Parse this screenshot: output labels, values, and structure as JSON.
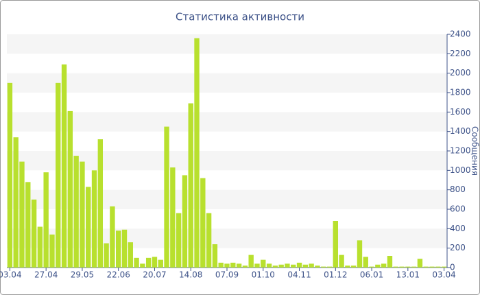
{
  "chart_data": {
    "type": "bar",
    "title": "Статистика активности",
    "y_label": "Сообщения",
    "categories": [
      "03.04",
      null,
      null,
      null,
      null,
      null,
      "27.04",
      null,
      null,
      null,
      null,
      null,
      "29.05",
      null,
      null,
      null,
      null,
      null,
      "22.06",
      null,
      null,
      null,
      null,
      null,
      "20.07",
      null,
      null,
      null,
      null,
      null,
      "14.08",
      null,
      null,
      null,
      null,
      null,
      "07.09",
      null,
      null,
      null,
      null,
      null,
      "01.10",
      null,
      null,
      null,
      null,
      null,
      "04.11",
      null,
      null,
      null,
      null,
      null,
      "01.12",
      null,
      null,
      null,
      null,
      null,
      "06.01",
      null,
      null,
      null,
      null,
      null,
      "13.01",
      null,
      null,
      null,
      null,
      null,
      "03.04"
    ],
    "values": [
      1900,
      1340,
      1090,
      880,
      700,
      420,
      980,
      340,
      1900,
      2090,
      1610,
      1150,
      1090,
      830,
      1000,
      1320,
      250,
      630,
      380,
      390,
      260,
      100,
      40,
      100,
      110,
      80,
      1450,
      1030,
      560,
      950,
      1690,
      2360,
      920,
      560,
      240,
      50,
      40,
      50,
      40,
      20,
      130,
      40,
      80,
      40,
      20,
      30,
      40,
      30,
      50,
      30,
      40,
      20,
      10,
      10,
      480,
      130,
      20,
      20,
      280,
      110,
      10,
      30,
      40,
      120,
      10,
      10,
      10,
      10,
      90,
      10,
      10,
      10,
      10
    ],
    "color": "#b8e02e",
    "ylim": [
      0,
      2400
    ],
    "yticks": [
      0,
      200,
      400,
      600,
      800,
      1000,
      1200,
      1400,
      1600,
      1800,
      2000,
      2200,
      2400
    ],
    "grid": true
  }
}
